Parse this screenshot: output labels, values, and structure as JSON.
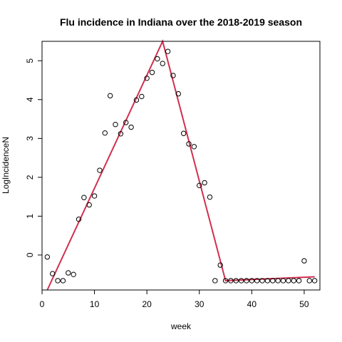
{
  "chart_data": {
    "type": "scatter",
    "title": "Flu incidence in Indiana over the 2018-2019 season",
    "xlabel": "week",
    "ylabel": "LogIncidenceN",
    "xlim": [
      0,
      53
    ],
    "ylim": [
      -0.9,
      5.5
    ],
    "x_ticks": [
      0,
      10,
      20,
      30,
      40,
      50
    ],
    "y_ticks": [
      0,
      1,
      2,
      3,
      4,
      5
    ],
    "grid": false,
    "legend": "none",
    "point_color": "#000000",
    "fit_color": "#d03050",
    "points": [
      {
        "x": 1,
        "y": -0.05
      },
      {
        "x": 2,
        "y": -0.48
      },
      {
        "x": 3,
        "y": -0.66
      },
      {
        "x": 4,
        "y": -0.66
      },
      {
        "x": 5,
        "y": -0.46
      },
      {
        "x": 6,
        "y": -0.5
      },
      {
        "x": 7,
        "y": 0.92
      },
      {
        "x": 8,
        "y": 1.48
      },
      {
        "x": 9,
        "y": 1.29
      },
      {
        "x": 10,
        "y": 1.52
      },
      {
        "x": 11,
        "y": 2.18
      },
      {
        "x": 12,
        "y": 3.14
      },
      {
        "x": 13,
        "y": 4.1
      },
      {
        "x": 14,
        "y": 3.36
      },
      {
        "x": 15,
        "y": 3.12
      },
      {
        "x": 16,
        "y": 3.41
      },
      {
        "x": 17,
        "y": 3.29
      },
      {
        "x": 18,
        "y": 3.99
      },
      {
        "x": 19,
        "y": 4.08
      },
      {
        "x": 20,
        "y": 4.55
      },
      {
        "x": 21,
        "y": 4.7
      },
      {
        "x": 22,
        "y": 5.05
      },
      {
        "x": 23,
        "y": 4.93
      },
      {
        "x": 24,
        "y": 5.24
      },
      {
        "x": 25,
        "y": 4.62
      },
      {
        "x": 26,
        "y": 4.15
      },
      {
        "x": 27,
        "y": 3.13
      },
      {
        "x": 28,
        "y": 2.86
      },
      {
        "x": 29,
        "y": 2.79
      },
      {
        "x": 30,
        "y": 1.79
      },
      {
        "x": 31,
        "y": 1.86
      },
      {
        "x": 32,
        "y": 1.49
      },
      {
        "x": 33,
        "y": -0.66
      },
      {
        "x": 34,
        "y": -0.26
      },
      {
        "x": 35,
        "y": -0.66
      },
      {
        "x": 36,
        "y": -0.66
      },
      {
        "x": 37,
        "y": -0.66
      },
      {
        "x": 38,
        "y": -0.66
      },
      {
        "x": 39,
        "y": -0.66
      },
      {
        "x": 40,
        "y": -0.66
      },
      {
        "x": 41,
        "y": -0.66
      },
      {
        "x": 42,
        "y": -0.66
      },
      {
        "x": 43,
        "y": -0.66
      },
      {
        "x": 44,
        "y": -0.66
      },
      {
        "x": 45,
        "y": -0.66
      },
      {
        "x": 46,
        "y": -0.66
      },
      {
        "x": 47,
        "y": -0.66
      },
      {
        "x": 48,
        "y": -0.66
      },
      {
        "x": 49,
        "y": -0.66
      },
      {
        "x": 50,
        "y": -0.15
      },
      {
        "x": 51,
        "y": -0.66
      },
      {
        "x": 52,
        "y": -0.66
      }
    ],
    "fit_line": [
      {
        "x": 1,
        "y": -0.9
      },
      {
        "x": 23,
        "y": 5.5
      },
      {
        "x": 35,
        "y": -0.66
      },
      {
        "x": 52,
        "y": -0.56
      }
    ]
  }
}
